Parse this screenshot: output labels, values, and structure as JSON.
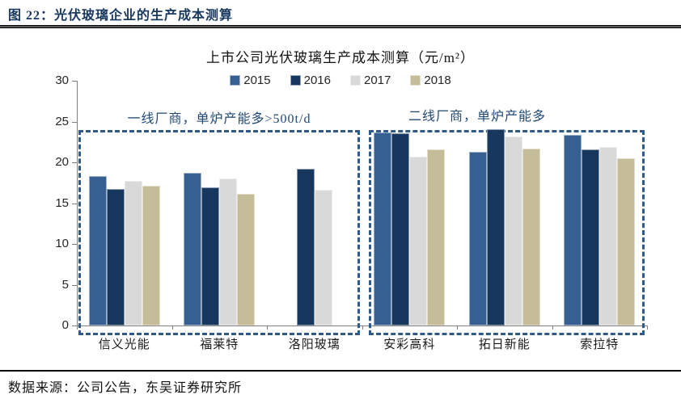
{
  "figure_header": {
    "title": "图 22：光伏玻璃企业的生产成本测算"
  },
  "footer": {
    "source": "数据来源：公司公告，东吴证券研究所"
  },
  "chart_data": {
    "type": "bar",
    "title": "上市公司光伏玻璃生产成本测算（元/m²）",
    "categories": [
      "信义光能",
      "福莱特",
      "洛阳玻璃",
      "安彩高科",
      "拓日新能",
      "索拉特"
    ],
    "series": [
      {
        "name": "2015",
        "color": "#376092",
        "values": [
          18.3,
          18.7,
          null,
          23.7,
          21.3,
          23.4
        ]
      },
      {
        "name": "2016",
        "color": "#17375E",
        "values": [
          16.7,
          16.9,
          19.2,
          23.6,
          24.1,
          21.6
        ]
      },
      {
        "name": "2017",
        "color": "#D9D9D9",
        "values": [
          17.7,
          18.0,
          16.6,
          20.7,
          23.2,
          21.9
        ]
      },
      {
        "name": "2018",
        "color": "#C4BD97",
        "values": [
          17.1,
          16.1,
          null,
          21.6,
          21.7,
          20.5
        ]
      }
    ],
    "ylim": [
      0,
      30
    ],
    "ytick_step": 5,
    "grid": false,
    "legend_position": "top",
    "annotations": [
      {
        "text": "一线厂商，单炉产能多>500t/d",
        "group_span": [
          0,
          2
        ]
      },
      {
        "text": "二线厂商，单炉产能多",
        "group_span": [
          3,
          5
        ]
      }
    ],
    "accent_colors": {
      "dashed_box": "#2E5A87",
      "annotation_text": "#1F4874",
      "header_navy": "#17375E"
    }
  }
}
